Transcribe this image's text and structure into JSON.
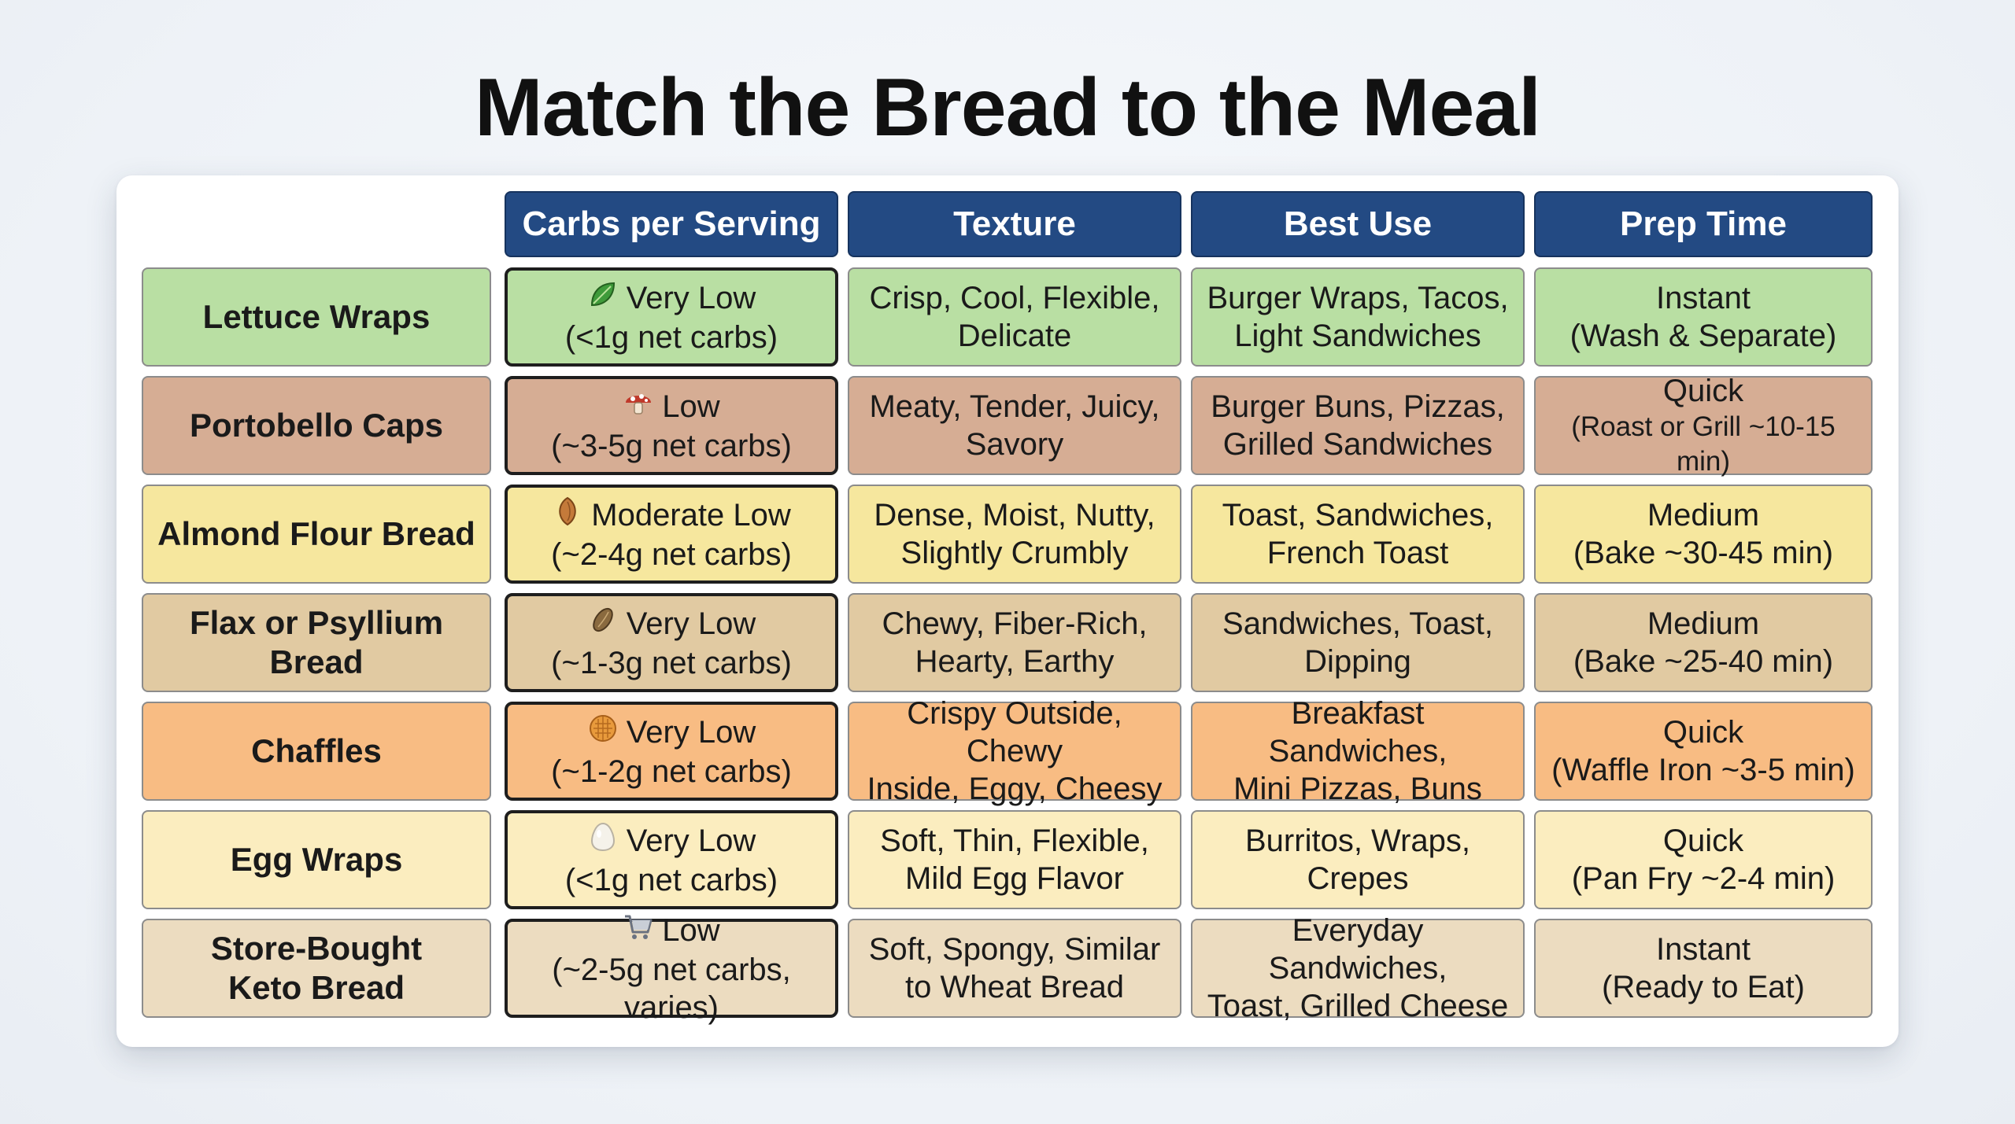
{
  "title": "Match the Bread to the Meal",
  "columns": [
    "Carbs per Serving",
    "Texture",
    "Best Use",
    "Prep Time"
  ],
  "rows": [
    {
      "name": "Lettuce Wraps",
      "theme": "green",
      "icon": "lettuce-leaf-icon",
      "carbs": "Very Low",
      "carbs_detail": "(<1g net carbs)",
      "texture": [
        "Crisp, Cool, Flexible,",
        "Delicate"
      ],
      "best_use": [
        "Burger Wraps, Tacos,",
        "Light Sandwiches"
      ],
      "prep": "Instant",
      "prep_detail": "(Wash & Separate)"
    },
    {
      "name": "Portobello Caps",
      "theme": "brown",
      "icon": "mushroom-icon",
      "carbs": "Low",
      "carbs_detail": "(~3-5g net carbs)",
      "texture": [
        "Meaty, Tender, Juicy,",
        "Savory"
      ],
      "best_use": [
        "Burger Buns, Pizzas,",
        "Grilled Sandwiches"
      ],
      "prep": "Quick",
      "prep_detail": "(Roast or Grill ~10-15 min)"
    },
    {
      "name": "Almond Flour Bread",
      "theme": "yellow",
      "icon": "almond-icon",
      "carbs": "Moderate Low",
      "carbs_detail": "(~2-4g net carbs)",
      "texture": [
        "Dense, Moist, Nutty,",
        "Slightly Crumbly"
      ],
      "best_use": [
        "Toast, Sandwiches,",
        "French Toast"
      ],
      "prep": "Medium",
      "prep_detail": "(Bake ~30-45 min)"
    },
    {
      "name": "Flax or Psyllium Bread",
      "name_lines": [
        "Flax or Psyllium",
        "Bread"
      ],
      "theme": "tan",
      "icon": "seed-icon",
      "carbs": "Very Low",
      "carbs_detail": "(~1-3g net carbs)",
      "texture": [
        "Chewy, Fiber-Rich,",
        "Hearty, Earthy"
      ],
      "best_use": [
        "Sandwiches, Toast,",
        "Dipping"
      ],
      "prep": "Medium",
      "prep_detail": "(Bake ~25-40 min)"
    },
    {
      "name": "Chaffles",
      "theme": "orange",
      "icon": "waffle-icon",
      "carbs": "Very Low",
      "carbs_detail": "(~1-2g net carbs)",
      "texture": [
        "Crispy Outside, Chewy",
        "Inside, Eggy, Cheesy"
      ],
      "best_use": [
        "Breakfast Sandwiches,",
        "Mini Pizzas, Buns"
      ],
      "prep": "Quick",
      "prep_detail": "(Waffle Iron ~3-5 min)"
    },
    {
      "name": "Egg Wraps",
      "theme": "cream",
      "icon": "egg-icon",
      "carbs": "Very Low",
      "carbs_detail": "(<1g net carbs)",
      "texture": [
        "Soft, Thin, Flexible,",
        "Mild Egg Flavor"
      ],
      "best_use": [
        "Burritos, Wraps,",
        "Crepes"
      ],
      "prep": "Quick",
      "prep_detail": "(Pan Fry ~2-4 min)"
    },
    {
      "name": "Store-Bought Keto Bread",
      "name_lines": [
        "Store-Bought",
        "Keto Bread"
      ],
      "theme": "beige",
      "icon": "shopping-cart-icon",
      "carbs": "Low",
      "carbs_detail": "(~2-5g net carbs, varies)",
      "texture": [
        "Soft, Spongy, Similar",
        "to Wheat Bread"
      ],
      "best_use": [
        "Everyday Sandwiches,",
        "Toast, Grilled Cheese"
      ],
      "prep": "Instant",
      "prep_detail": "(Ready to Eat)"
    }
  ],
  "theme_colors": {
    "header": "#234a83",
    "green": "#b9dfa3",
    "brown": "#d6ad94",
    "yellow": "#f6e79e",
    "tan": "#e1caa2",
    "orange": "#f8bc83",
    "cream": "#fbedbf",
    "beige": "#ecdcc0"
  }
}
